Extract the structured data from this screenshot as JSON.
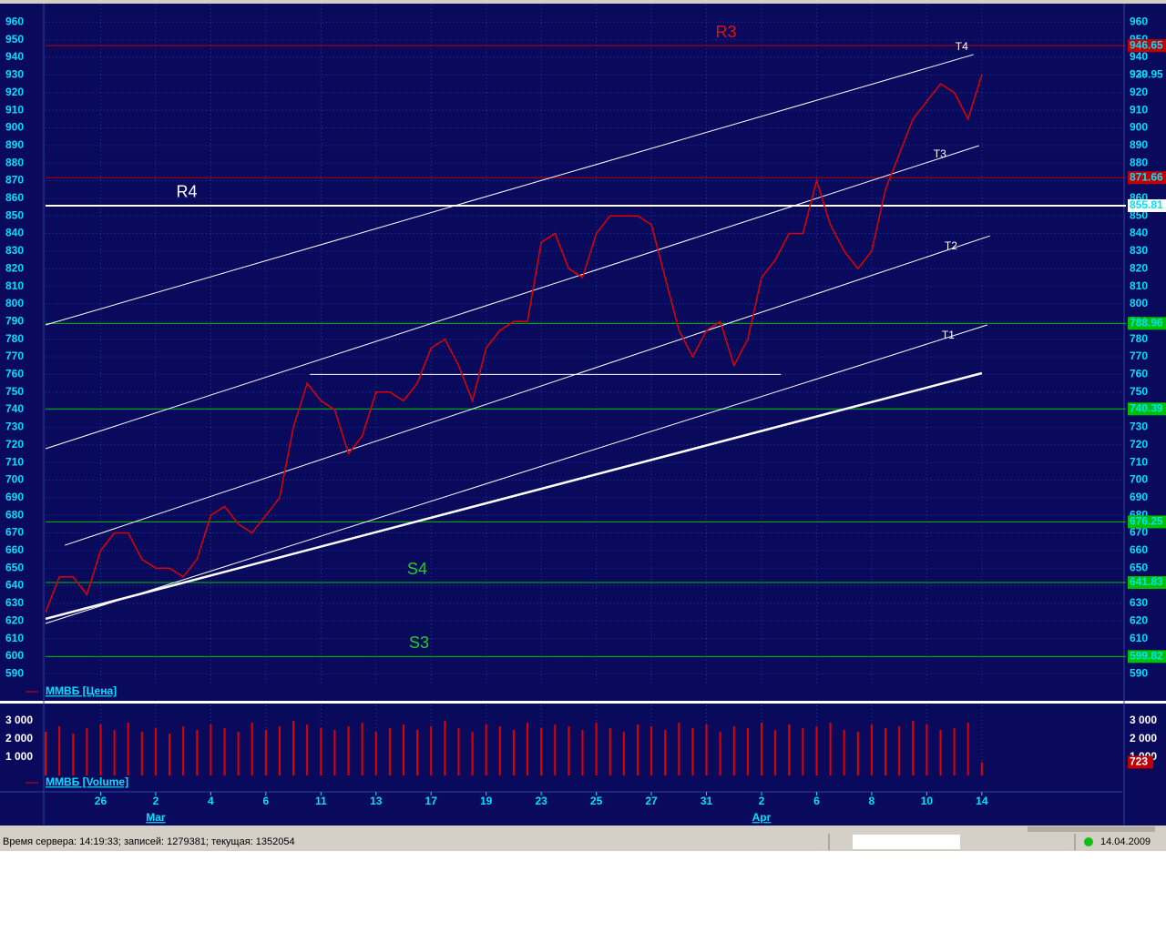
{
  "chart_data": [
    {
      "type": "line",
      "x": [
        0,
        0.5,
        1,
        1.5,
        2,
        2.5,
        3,
        3.5,
        4,
        4.5,
        5,
        5.5,
        6,
        6.5,
        7,
        7.5,
        8,
        8.5,
        9,
        9.5,
        10,
        10.5,
        11,
        11.5,
        12,
        12.5,
        13,
        13.5,
        14,
        14.5,
        15,
        15.5,
        16,
        16.5,
        17,
        17.5,
        18,
        18.5,
        19,
        19.5,
        20,
        20.5,
        21,
        21.5,
        22,
        22.5,
        23,
        23.5,
        24,
        24.5,
        25,
        25.5,
        26,
        26.5,
        27,
        27.5,
        28,
        28.5,
        29,
        29.5,
        30,
        30.5,
        31,
        31.5,
        32,
        32.5,
        33,
        33.5,
        34
      ],
      "series": [
        {
          "name": "ММВБ [Цена]",
          "color": "#e00000",
          "values": [
            625,
            645,
            645,
            635,
            660,
            670,
            670,
            655,
            650,
            650,
            645,
            655,
            680,
            685,
            675,
            670,
            680,
            690,
            730,
            755,
            745,
            740,
            715,
            725,
            750,
            750,
            745,
            755,
            775,
            780,
            765,
            745,
            775,
            785,
            790,
            790,
            835,
            840,
            820,
            815,
            840,
            850,
            850,
            850,
            845,
            815,
            785,
            770,
            785,
            790,
            765,
            780,
            815,
            825,
            840,
            840,
            870,
            845,
            830,
            820,
            830,
            865,
            885,
            905,
            915,
            925,
            920,
            905,
            930
          ]
        }
      ],
      "xlim": [
        0,
        39.1
      ],
      "xticks": [
        {
          "value": 2,
          "label": "26"
        },
        {
          "value": 4,
          "label": "2"
        },
        {
          "value": 6,
          "label": "4"
        },
        {
          "value": 8,
          "label": "6"
        },
        {
          "value": 10,
          "label": "11"
        },
        {
          "value": 12,
          "label": "13"
        },
        {
          "value": 14,
          "label": "17"
        },
        {
          "value": 16,
          "label": "19"
        },
        {
          "value": 18,
          "label": "23"
        },
        {
          "value": 20,
          "label": "25"
        },
        {
          "value": 22,
          "label": "27"
        },
        {
          "value": 24,
          "label": "31"
        },
        {
          "value": 26,
          "label": "2"
        },
        {
          "value": 28,
          "label": "6"
        },
        {
          "value": 30,
          "label": "8"
        },
        {
          "value": 32,
          "label": "10"
        },
        {
          "value": 34,
          "label": "14"
        }
      ],
      "x_months": [
        {
          "value": 4,
          "label": "Mar"
        },
        {
          "value": 26,
          "label": "Apr"
        }
      ],
      "ylim": [
        585,
        970
      ],
      "yticks": [
        590,
        600,
        610,
        620,
        630,
        640,
        650,
        660,
        670,
        680,
        690,
        700,
        710,
        720,
        730,
        740,
        750,
        760,
        770,
        780,
        790,
        800,
        810,
        820,
        830,
        840,
        850,
        860,
        870,
        880,
        890,
        900,
        910,
        920,
        930,
        940,
        950,
        960
      ],
      "grid": true,
      "levels": [
        {
          "value": 946.65,
          "color": "#c00000",
          "label": "R3"
        },
        {
          "value": 871.66,
          "color": "#c00000"
        },
        {
          "value": 855.81,
          "color": "#ffffff",
          "label": "R4"
        },
        {
          "value": 788.96,
          "color": "#00c000"
        },
        {
          "value": 740.39,
          "color": "#00c000"
        },
        {
          "value": 676.25,
          "color": "#00c000"
        },
        {
          "value": 641.83,
          "color": "#00c000",
          "label": "S4"
        },
        {
          "value": 599.82,
          "color": "#00c000",
          "label": "S3"
        }
      ],
      "trendlines": [
        {
          "name": "T4",
          "x": [
            0,
            33.7
          ],
          "y": [
            788.1,
            941.6
          ]
        },
        {
          "name": "T3",
          "x": [
            0,
            33.9
          ],
          "y": [
            717.8,
            889.9
          ]
        },
        {
          "name": "T2",
          "x": [
            0.7,
            34.3
          ],
          "y": [
            663,
            838.7
          ]
        },
        {
          "name": "T1",
          "x": [
            0,
            34.2
          ],
          "y": [
            618.6,
            788.1
          ]
        },
        {
          "x": [
            0,
            34
          ],
          "y": [
            621.2,
            760.7
          ],
          "width": 2.5
        },
        {
          "x": [
            9.6,
            26.7
          ],
          "y": [
            760,
            760
          ]
        }
      ],
      "last_price": 929.95
    },
    {
      "type": "bar",
      "series": [
        {
          "name": "ММВБ [Volume]",
          "color": "#e00000",
          "values": [
            2400,
            2700,
            2300,
            2600,
            2800,
            2500,
            2900,
            2400,
            2600,
            2300,
            2700,
            2500,
            2800,
            2600,
            2400,
            2900,
            2500,
            2700,
            3000,
            2800,
            2600,
            2500,
            2700,
            2900,
            2400,
            2600,
            2800,
            2500,
            2700,
            3000,
            2600,
            2400,
            2800,
            2700,
            2500,
            2900,
            2600,
            2800,
            2700,
            2500,
            2900,
            2600,
            2400,
            2800,
            2700,
            2500,
            2900,
            2600,
            2800,
            2400,
            2700,
            2600,
            2900,
            2500,
            2800,
            2600,
            2700,
            2900,
            2500,
            2400,
            2800,
            2600,
            2700,
            3000,
            2800,
            2500,
            2600,
            2900,
            723
          ]
        }
      ],
      "x": [
        0,
        0.5,
        1,
        1.5,
        2,
        2.5,
        3,
        3.5,
        4,
        4.5,
        5,
        5.5,
        6,
        6.5,
        7,
        7.5,
        8,
        8.5,
        9,
        9.5,
        10,
        10.5,
        11,
        11.5,
        12,
        12.5,
        13,
        13.5,
        14,
        14.5,
        15,
        15.5,
        16,
        16.5,
        17,
        17.5,
        18,
        18.5,
        19,
        19.5,
        20,
        20.5,
        21,
        21.5,
        22,
        22.5,
        23,
        23.5,
        24,
        24.5,
        25,
        25.5,
        26,
        26.5,
        27,
        27.5,
        28,
        28.5,
        29,
        29.5,
        30,
        30.5,
        31,
        31.5,
        32,
        32.5,
        33,
        33.5,
        34
      ],
      "xlim": [
        0,
        39.1
      ],
      "ylim": [
        0,
        3850
      ],
      "yticks": [
        {
          "value": 1000,
          "label": "1 000"
        },
        {
          "value": 2000,
          "label": "2 000"
        },
        {
          "value": 3000,
          "label": "3 000"
        }
      ],
      "last_value": 723
    }
  ],
  "status_bar": {
    "server_info": "Время сервера: 14:19:33; записей: 1279381; текущая: 1352054",
    "date": "14.04.2009"
  }
}
